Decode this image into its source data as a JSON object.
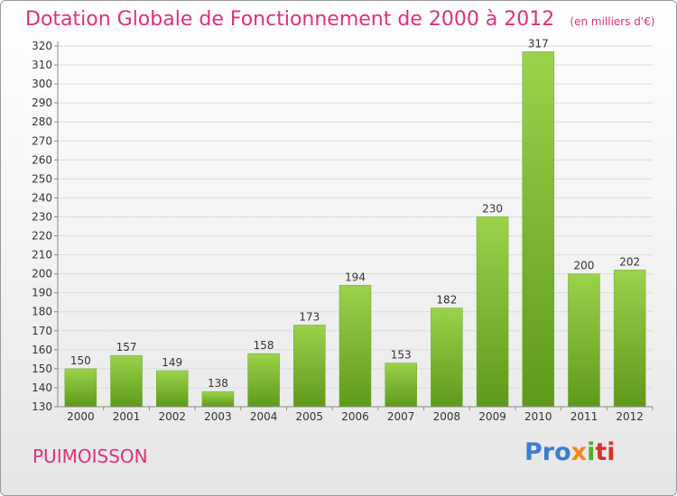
{
  "header": {
    "title": "Dotation Globale de Fonctionnement de 2000 à 2012",
    "subtitle": "(en milliers d'€)"
  },
  "footer": {
    "commune": "PUIMOISSON",
    "logo_parts": [
      "Pro",
      "x",
      "i",
      "ti"
    ]
  },
  "colors": {
    "title": "#e0307a",
    "bar_top": "#9ad34b",
    "bar_bottom": "#5e9a1a"
  },
  "chart_data": {
    "type": "bar",
    "title": "Dotation Globale de Fonctionnement de 2000 à 2012",
    "subtitle": "(en milliers d'€)",
    "categories": [
      "2000",
      "2001",
      "2002",
      "2003",
      "2004",
      "2005",
      "2006",
      "2007",
      "2008",
      "2009",
      "2010",
      "2011",
      "2012"
    ],
    "values": [
      150,
      157,
      149,
      138,
      158,
      173,
      194,
      153,
      182,
      230,
      317,
      200,
      202
    ],
    "ylim": [
      130,
      320
    ],
    "ytick_step": 10,
    "grid": true,
    "legend": "none"
  }
}
